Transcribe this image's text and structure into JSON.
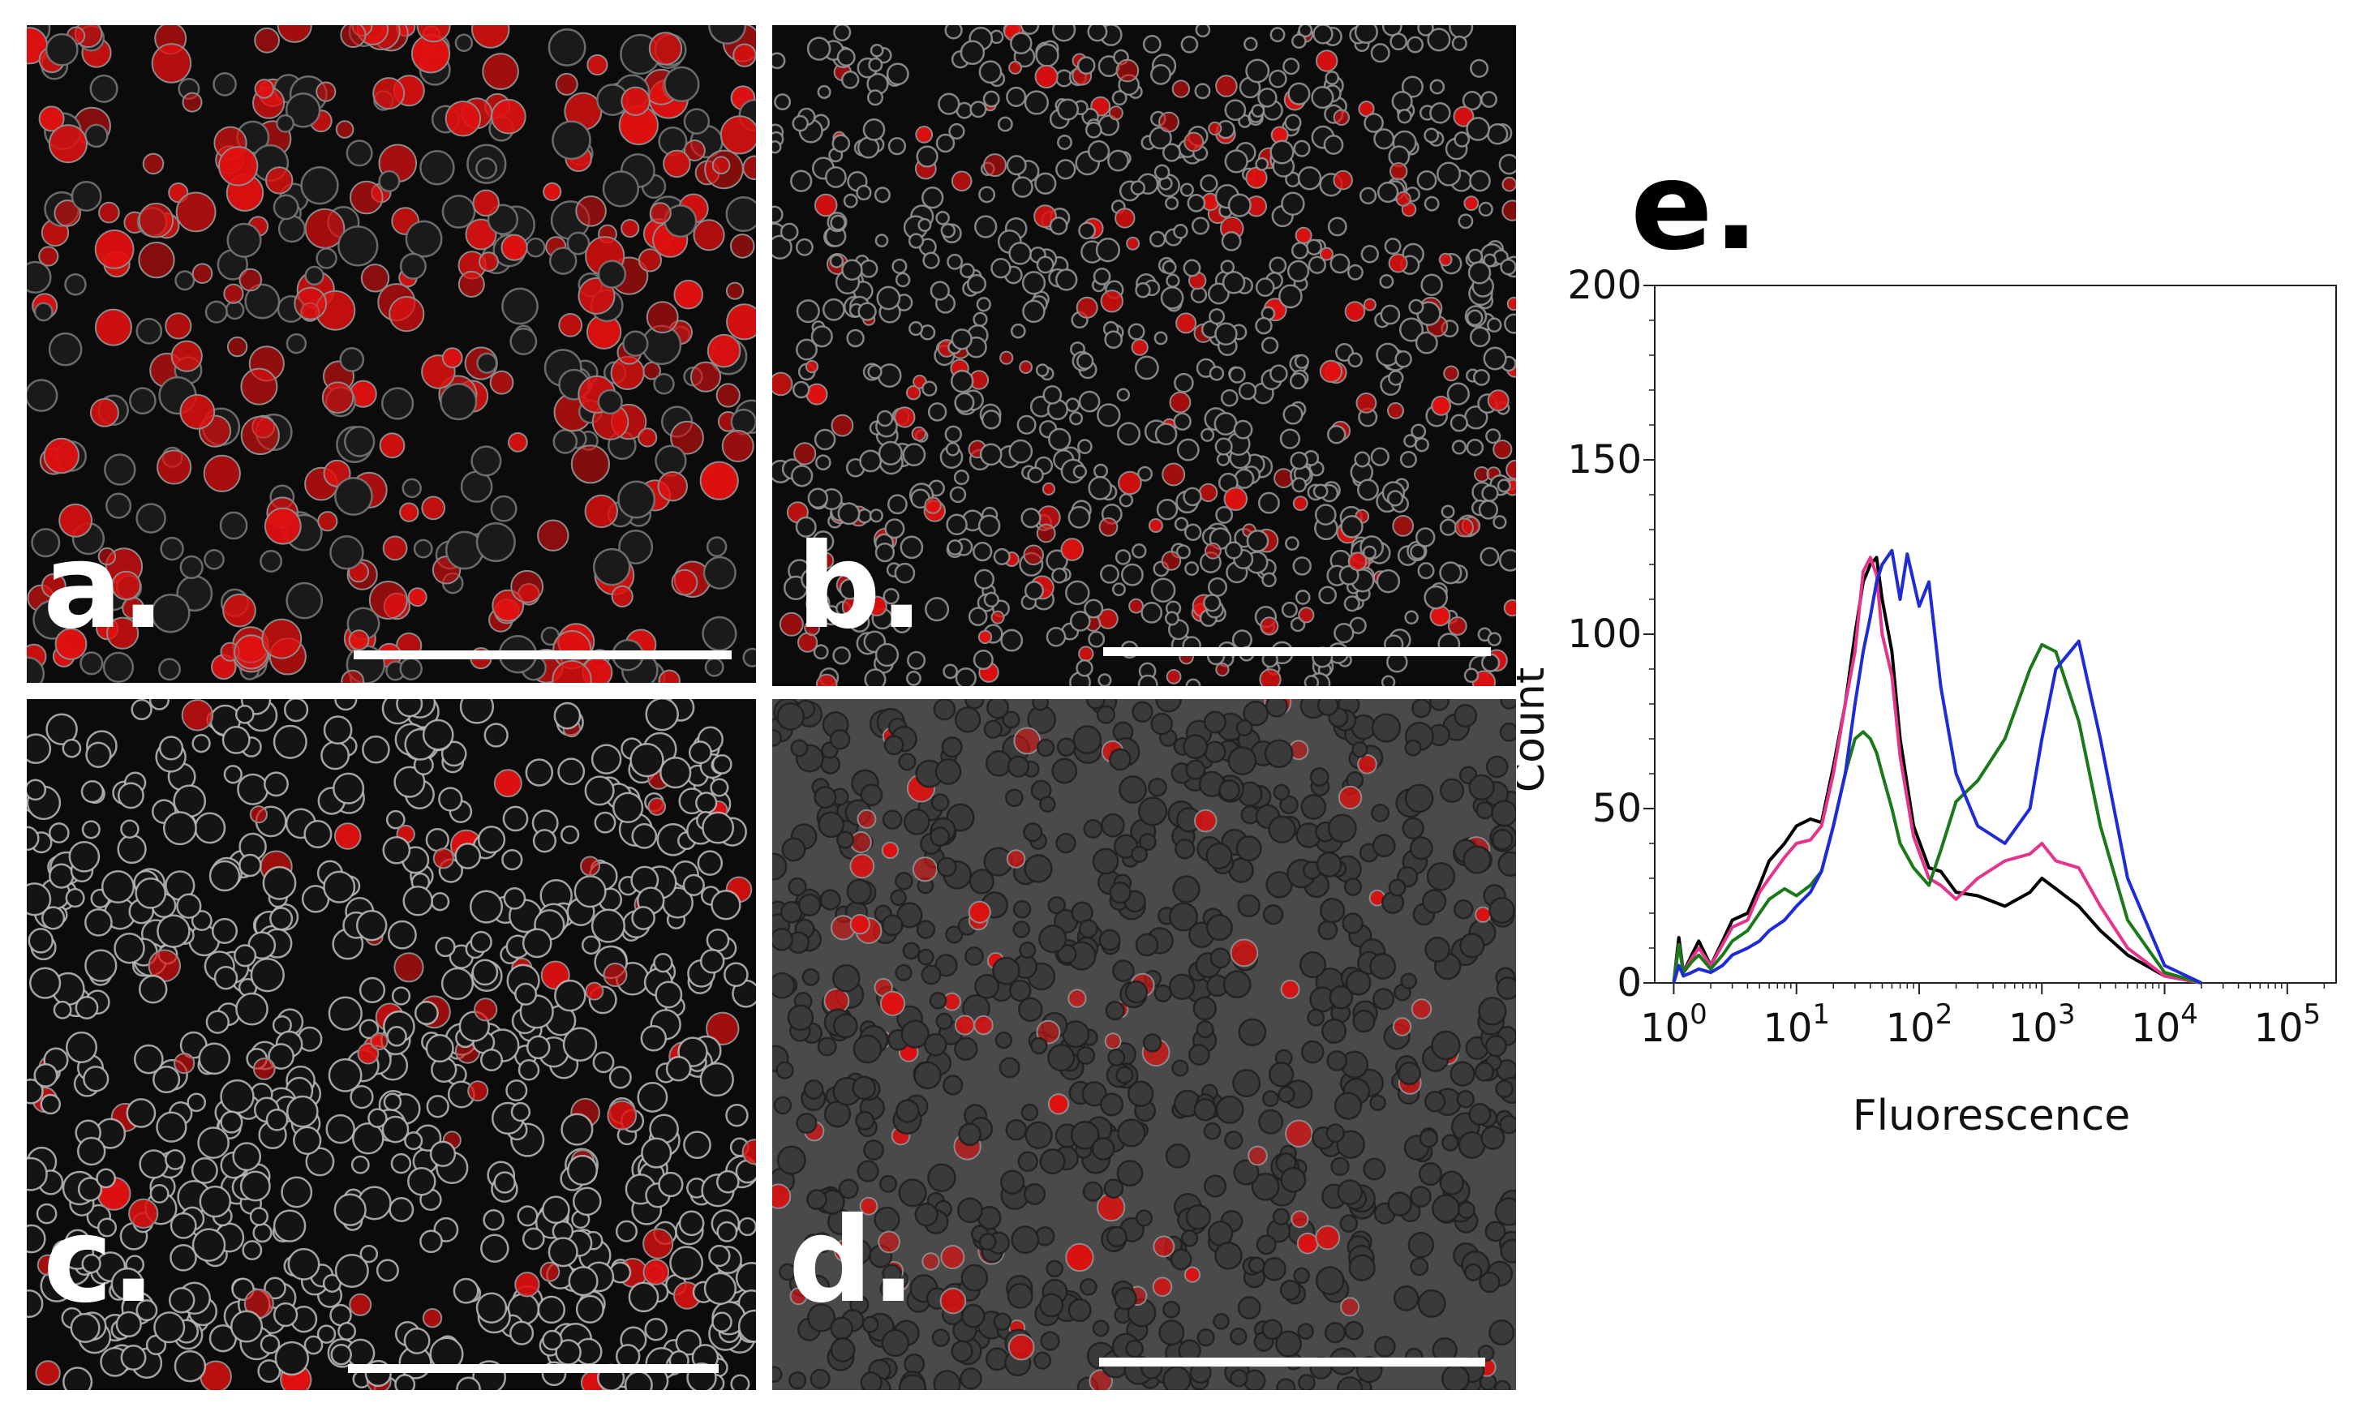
{
  "panels": {
    "a": {
      "label": "a."
    },
    "b": {
      "label": "b."
    },
    "c": {
      "label": "c."
    },
    "d": {
      "label": "d."
    },
    "e": {
      "label": "e."
    }
  },
  "colors": {
    "black": "#000000",
    "pink": "#e6348c",
    "green": "#1a7a1a",
    "blue": "#1f2bd6",
    "red_fluor": "#e01010"
  },
  "chart_data": {
    "type": "line",
    "title": "",
    "xlabel": "Fluorescence",
    "ylabel": "Count",
    "xscale": "log",
    "xlim": [
      0.7,
      250000
    ],
    "ylim": [
      0,
      200
    ],
    "xticks": [
      "10^0",
      "10^1",
      "10^2",
      "10^3",
      "10^4",
      "10^5"
    ],
    "yticks": [
      0,
      50,
      100,
      150,
      200
    ],
    "grid": false,
    "legend": "none",
    "series": [
      {
        "color": "#000000",
        "x": [
          1,
          1.1,
          1.2,
          1.4,
          1.6,
          2,
          2.5,
          3,
          4,
          5,
          6,
          8,
          10,
          13,
          16,
          20,
          25,
          30,
          35,
          40,
          45,
          50,
          60,
          70,
          90,
          120,
          150,
          200,
          300,
          500,
          800,
          1000,
          1300,
          2000,
          3000,
          5000,
          10000,
          20000
        ],
        "y": [
          0,
          13,
          3,
          8,
          12,
          5,
          12,
          18,
          20,
          28,
          35,
          40,
          45,
          47,
          46,
          62,
          80,
          100,
          115,
          120,
          122,
          110,
          95,
          70,
          45,
          33,
          32,
          26,
          25,
          22,
          26,
          30,
          27,
          22,
          15,
          8,
          2,
          0
        ]
      },
      {
        "color": "#e6348c",
        "x": [
          1,
          1.1,
          1.2,
          1.4,
          1.6,
          2,
          2.5,
          3,
          4,
          5,
          6,
          8,
          10,
          13,
          16,
          20,
          25,
          30,
          35,
          40,
          45,
          50,
          60,
          70,
          90,
          120,
          150,
          200,
          300,
          500,
          800,
          1000,
          1300,
          2000,
          3000,
          5000,
          10000,
          20000
        ],
        "y": [
          0,
          11,
          3,
          7,
          10,
          5,
          11,
          16,
          18,
          26,
          30,
          36,
          40,
          41,
          45,
          60,
          80,
          95,
          118,
          122,
          117,
          100,
          88,
          65,
          42,
          30,
          28,
          24,
          30,
          35,
          37,
          40,
          35,
          33,
          22,
          10,
          2,
          0
        ]
      },
      {
        "color": "#1a7a1a",
        "x": [
          1,
          1.1,
          1.2,
          1.4,
          1.6,
          2,
          2.5,
          3,
          4,
          5,
          6,
          8,
          10,
          13,
          16,
          20,
          25,
          30,
          35,
          40,
          45,
          50,
          60,
          70,
          90,
          120,
          150,
          200,
          300,
          500,
          800,
          1000,
          1300,
          2000,
          3000,
          5000,
          10000,
          20000
        ],
        "y": [
          0,
          11,
          3,
          6,
          8,
          4,
          8,
          12,
          15,
          20,
          24,
          27,
          25,
          28,
          32,
          45,
          60,
          70,
          72,
          70,
          66,
          60,
          50,
          40,
          33,
          28,
          38,
          52,
          58,
          70,
          90,
          97,
          95,
          75,
          45,
          18,
          3,
          0
        ]
      },
      {
        "color": "#1f2bd6",
        "x": [
          1,
          1.1,
          1.2,
          1.4,
          1.6,
          2,
          2.5,
          3,
          4,
          5,
          6,
          8,
          10,
          13,
          16,
          20,
          25,
          30,
          35,
          40,
          45,
          50,
          60,
          70,
          80,
          100,
          120,
          150,
          200,
          300,
          500,
          800,
          1000,
          1300,
          2000,
          3000,
          5000,
          10000,
          20000
        ],
        "y": [
          0,
          5,
          2,
          3,
          4,
          3,
          5,
          8,
          10,
          12,
          15,
          18,
          22,
          26,
          32,
          45,
          60,
          80,
          95,
          105,
          115,
          120,
          124,
          110,
          123,
          108,
          115,
          85,
          60,
          45,
          40,
          50,
          70,
          90,
          98,
          70,
          30,
          5,
          0
        ]
      }
    ]
  }
}
